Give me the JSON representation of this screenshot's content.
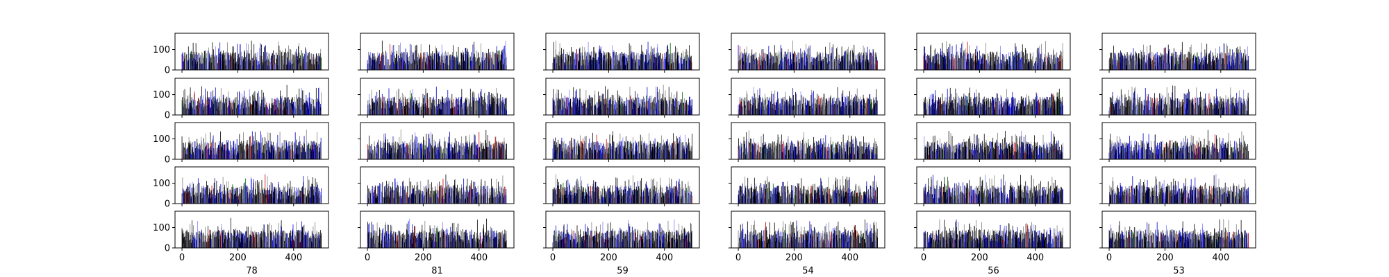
{
  "chart_data": {
    "type": "bar",
    "layout": {
      "rows": 5,
      "columns": 6
    },
    "column_labels": [
      "78",
      "81",
      "59",
      "54",
      "56",
      "53"
    ],
    "xlim": [
      -25,
      525
    ],
    "ylim": [
      0,
      180
    ],
    "x_ticks": [
      0,
      200,
      400
    ],
    "y_ticks": [
      0,
      100
    ],
    "grid": false,
    "legend": "none",
    "bars_per_panel": 500,
    "value_range_approx": [
      20,
      160
    ],
    "bar_colors": [
      "#000000",
      "#808080",
      "#0000cc",
      "#8080ff",
      "#cc0000",
      "#006600"
    ],
    "description_of_values": "Each panel shows dense vertical bars, one per integer x from 0 to ~500, with heights mostly between 20 and 150; colors vary per bar (black, gray, blue, light blue, occasional red/green)."
  }
}
